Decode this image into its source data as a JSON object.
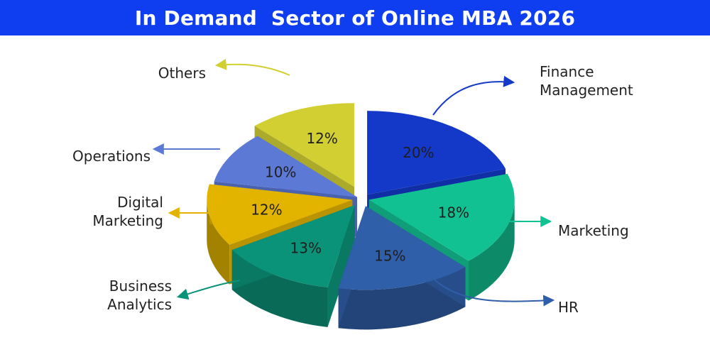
{
  "chart_data": {
    "type": "pie",
    "title": "In Demand  Sector of Online MBA 2026",
    "style": "3d-exploded",
    "slices": [
      {
        "label": "Finance Management",
        "value": 20,
        "value_label": "20%",
        "color": "#1439c9",
        "label_position": "top-right"
      },
      {
        "label": "Marketing",
        "value": 18,
        "value_label": "18%",
        "color": "#12c192",
        "label_position": "right"
      },
      {
        "label": "HR",
        "value": 15,
        "value_label": "15%",
        "color": "#2f5fa8",
        "label_position": "bottom-right"
      },
      {
        "label": "Business Analytics",
        "value": 13,
        "value_label": "13%",
        "color": "#0b9379",
        "label_position": "bottom-left"
      },
      {
        "label": "Digital Marketing",
        "value": 12,
        "value_label": "12%",
        "color": "#e2b400",
        "label_position": "left"
      },
      {
        "label": "Operations",
        "value": 10,
        "value_label": "10%",
        "color": "#5c79d6",
        "label_position": "left"
      },
      {
        "label": "Others",
        "value": 12,
        "value_label": "12%",
        "color": "#d2cf33",
        "label_position": "top-left"
      }
    ]
  }
}
